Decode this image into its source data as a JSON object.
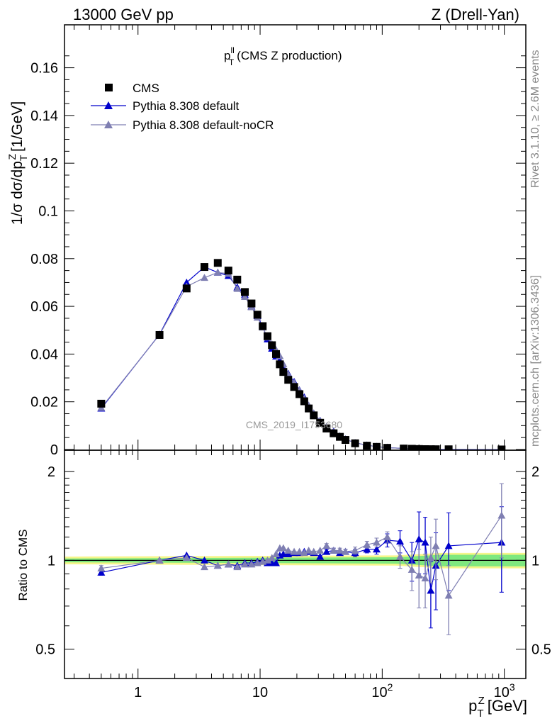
{
  "header": {
    "left": "13000 GeV pp",
    "right": "Z (Drell-Yan)"
  },
  "side_labels": {
    "rivet": "Rivet 3.1.10, ≥ 2.6M events",
    "mcplots": "mcplots.cern.ch [arXiv:1306.3436]"
  },
  "watermark": "CMS_2019_I1753680",
  "colors": {
    "data": "#000000",
    "mc1": "#0000cc",
    "mc2": "#7f7fb2",
    "band_inner": "#7fe87f",
    "band_outer": "#f5f58a"
  },
  "chart_data": [
    {
      "type": "scatter",
      "panel": "main",
      "title": "p_T^ll (CMS Z production)",
      "xlabel": "p_T^Z [GeV]",
      "ylabel": "1/σ dσ/dp_T^Z [1/GeV]",
      "xscale": "log",
      "xlim": [
        0.25,
        1500
      ],
      "ylim": [
        0,
        0.178
      ],
      "yticks": [
        "0",
        "0.02",
        "0.04",
        "0.06",
        "0.08",
        "0.1",
        "0.12",
        "0.14",
        "0.16"
      ],
      "legend_position": "top-left",
      "series": [
        {
          "name": "CMS",
          "marker": "square",
          "x": [
            0.5,
            1.5,
            2.5,
            3.5,
            4.5,
            5.5,
            6.5,
            7.5,
            8.5,
            9.5,
            10.5,
            11.5,
            12.5,
            13.5,
            14.5,
            15.5,
            17,
            19,
            21,
            23,
            25,
            27.5,
            31,
            35,
            40,
            45,
            50,
            60,
            75,
            90,
            110,
            150,
            175,
            200,
            225,
            250,
            275,
            350,
            950
          ],
          "y": [
            0.0192,
            0.048,
            0.0675,
            0.0765,
            0.0782,
            0.075,
            0.0712,
            0.066,
            0.0612,
            0.0565,
            0.0517,
            0.0475,
            0.0437,
            0.04,
            0.0357,
            0.0325,
            0.0292,
            0.0262,
            0.0232,
            0.0202,
            0.0172,
            0.0143,
            0.0112,
            0.0088,
            0.0068,
            0.0053,
            0.004,
            0.0026,
            0.0016,
            0.0011,
            0.0007,
            0.0004,
            0.0003,
            0.0002,
            0.00015,
            0.00012,
            0.0001,
            8e-05,
            1e-05
          ]
        },
        {
          "name": "Pythia 8.308 default",
          "marker": "triangle",
          "x": [
            0.5,
            1.5,
            2.5,
            3.5,
            4.5,
            5.5,
            6.5,
            7.5,
            8.5,
            9.5,
            10.5,
            11.5,
            12.5,
            13.5,
            14.5,
            15.5,
            17,
            19,
            21,
            23,
            25,
            27.5,
            31,
            35,
            40,
            45,
            50,
            60,
            75,
            90,
            110,
            150,
            175,
            200,
            225,
            250,
            275,
            350,
            950
          ],
          "y": [
            0.0172,
            0.0482,
            0.07,
            0.0765,
            0.0742,
            0.0728,
            0.068,
            0.0648,
            0.06,
            0.056,
            0.0515,
            0.0462,
            0.0423,
            0.039,
            0.0373,
            0.0345,
            0.0318,
            0.0284,
            0.0249,
            0.0219,
            0.0184,
            0.0152,
            0.0121,
            0.0093,
            0.0076,
            0.0056,
            0.0043,
            0.0028,
            0.0018,
            0.0012,
            0.0008,
            0.00045,
            0.0003,
            0.00024,
            0.00017,
            0.0001,
            0.00011,
            9e-05,
            1e-05
          ]
        },
        {
          "name": "Pythia 8.308 default-noCR",
          "marker": "triangle",
          "x": [
            0.5,
            1.5,
            2.5,
            3.5,
            4.5,
            5.5,
            6.5,
            7.5,
            8.5,
            9.5,
            10.5,
            11.5,
            12.5,
            13.5,
            14.5,
            15.5,
            17,
            19,
            21,
            23,
            25,
            27.5,
            31,
            35,
            40,
            45,
            50,
            60,
            75,
            90,
            110,
            150,
            175,
            200,
            225,
            250,
            275,
            350,
            950
          ],
          "y": [
            0.0175,
            0.0481,
            0.0683,
            0.072,
            0.0742,
            0.0737,
            0.0674,
            0.064,
            0.0597,
            0.0553,
            0.0512,
            0.047,
            0.0442,
            0.0418,
            0.0392,
            0.0358,
            0.0315,
            0.028,
            0.0247,
            0.0214,
            0.0185,
            0.0152,
            0.012,
            0.0096,
            0.0073,
            0.0057,
            0.0043,
            0.0028,
            0.0018,
            0.0012,
            0.0008,
            0.0004,
            0.0003,
            0.0002,
            0.00014,
            0.0001,
            0.0001,
            6e-05,
            1e-05
          ]
        }
      ]
    },
    {
      "type": "line",
      "panel": "ratio",
      "ylabel": "Ratio to CMS",
      "xlabel": "p_T^Z [GeV]",
      "xscale": "log",
      "xlim": [
        0.25,
        1500
      ],
      "ylim": [
        0.4,
        2.35
      ],
      "yscale": "log",
      "yticks": [
        "0.5",
        "1",
        "2"
      ],
      "xticks": [
        "1",
        "10",
        "10^2",
        "10^3"
      ],
      "band_x": [
        0.25,
        130,
        200,
        300,
        1500
      ],
      "band_inner": [
        0.985,
        0.975,
        0.965,
        0.955,
        0.955
      ],
      "band_inner_hi": [
        1.015,
        1.025,
        1.035,
        1.045,
        1.045
      ],
      "band_outer": [
        0.97,
        0.96,
        0.95,
        0.94,
        0.94
      ],
      "band_outer_hi": [
        1.03,
        1.04,
        1.05,
        1.06,
        1.06
      ],
      "series": [
        {
          "name": "Pythia 8.308 default",
          "x": [
            0.5,
            1.5,
            2.5,
            3.5,
            4.5,
            5.5,
            6.5,
            7.5,
            8.5,
            9.5,
            10.5,
            11.5,
            12.5,
            13.5,
            14.5,
            15.5,
            17,
            19,
            21,
            23,
            25,
            27.5,
            31,
            35,
            40,
            45,
            50,
            60,
            75,
            90,
            110,
            140,
            175,
            200,
            225,
            250,
            275,
            350,
            950
          ],
          "y": [
            0.91,
            1.0,
            1.04,
            1.0,
            0.96,
            0.97,
            0.96,
            0.98,
            0.98,
            0.99,
            1.0,
            0.98,
            0.98,
            0.98,
            1.04,
            1.05,
            1.05,
            1.06,
            1.06,
            1.07,
            1.07,
            1.06,
            1.03,
            1.07,
            1.08,
            1.06,
            1.07,
            1.06,
            1.09,
            1.09,
            1.17,
            1.16,
            1.0,
            1.18,
            1.15,
            0.79,
            0.96,
            1.12,
            1.15
          ],
          "err": [
            0.02,
            0.01,
            0.01,
            0.01,
            0.01,
            0.01,
            0.01,
            0.01,
            0.01,
            0.01,
            0.01,
            0.01,
            0.01,
            0.01,
            0.01,
            0.01,
            0.01,
            0.01,
            0.01,
            0.01,
            0.01,
            0.01,
            0.01,
            0.02,
            0.02,
            0.02,
            0.02,
            0.03,
            0.03,
            0.04,
            0.06,
            0.1,
            0.15,
            0.28,
            0.25,
            0.2,
            0.28,
            0.33,
            0.37
          ]
        },
        {
          "name": "Pythia 8.308 default-noCR",
          "x": [
            0.5,
            1.5,
            2.5,
            3.5,
            4.5,
            5.5,
            6.5,
            7.5,
            8.5,
            9.5,
            10.5,
            11.5,
            12.5,
            13.5,
            14.5,
            15.5,
            17,
            19,
            21,
            23,
            25,
            27.5,
            31,
            35,
            40,
            45,
            50,
            60,
            75,
            90,
            110,
            140,
            175,
            200,
            225,
            250,
            275,
            350,
            950
          ],
          "y": [
            0.94,
            1.0,
            1.02,
            0.95,
            0.96,
            0.97,
            0.95,
            0.97,
            0.97,
            0.98,
            0.99,
            1.0,
            1.02,
            1.05,
            1.1,
            1.1,
            1.08,
            1.07,
            1.07,
            1.06,
            1.08,
            1.07,
            1.08,
            1.12,
            1.08,
            1.08,
            1.07,
            1.08,
            1.13,
            1.15,
            1.2,
            1.03,
            0.93,
            0.89,
            0.87,
            1.02,
            1.12,
            0.76,
            1.42
          ],
          "err": [
            0.02,
            0.01,
            0.01,
            0.01,
            0.01,
            0.01,
            0.01,
            0.01,
            0.01,
            0.01,
            0.01,
            0.01,
            0.01,
            0.01,
            0.01,
            0.01,
            0.01,
            0.01,
            0.01,
            0.01,
            0.01,
            0.01,
            0.01,
            0.02,
            0.02,
            0.02,
            0.02,
            0.03,
            0.03,
            0.04,
            0.05,
            0.09,
            0.14,
            0.2,
            0.18,
            0.18,
            0.26,
            0.2,
            0.4
          ]
        }
      ]
    }
  ]
}
